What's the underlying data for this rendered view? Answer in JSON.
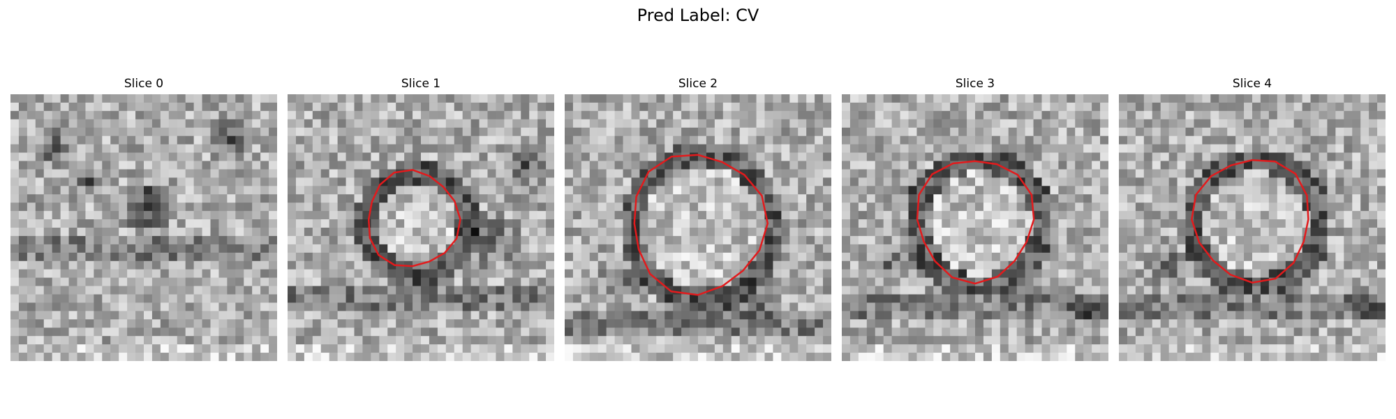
{
  "figure": {
    "title": "Pred Label: CV"
  },
  "slices": [
    {
      "label": "Slice 0",
      "has_contour": false,
      "seed": 11
    },
    {
      "label": "Slice 1",
      "has_contour": true,
      "seed": 23
    },
    {
      "label": "Slice 2",
      "has_contour": true,
      "seed": 37
    },
    {
      "label": "Slice 3",
      "has_contour": true,
      "seed": 41
    },
    {
      "label": "Slice 4",
      "has_contour": true,
      "seed": 53
    }
  ],
  "colors": {
    "contour": "#e31a1c"
  },
  "image": {
    "colormap": "grayscale",
    "grid": 32
  }
}
